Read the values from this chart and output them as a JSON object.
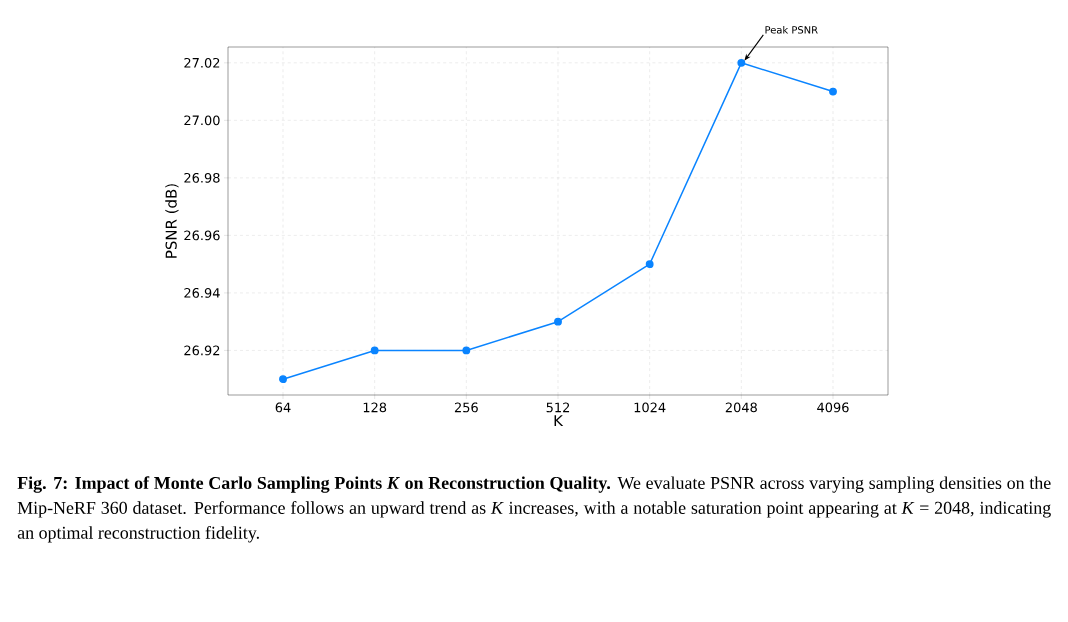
{
  "chart_data": {
    "type": "line",
    "title": "Fig. 7: Impact of Monte Carlo Sampling Points *K* on Reconstruction Quality.",
    "xlabel": "K",
    "ylabel": "PSNR (dB)",
    "categories": [
      "64",
      "128",
      "256",
      "512",
      "1024",
      "2048",
      "4096"
    ],
    "series": [
      {
        "color": "#0a84ff",
        "values": [
          26.91,
          26.92,
          26.92,
          26.93,
          26.95,
          27.02,
          27.01
        ]
      }
    ],
    "ylim": [
      26.9045,
      27.0255
    ],
    "yticks": [
      26.92,
      26.94,
      26.96,
      26.98,
      {
        "value": 27.0,
        "label": "27.00"
      },
      27.02
    ],
    "grid": true,
    "marker": "circle",
    "line_style": "solid",
    "annotations": [
      {
        "text": "Peak PSNR",
        "x": "2048",
        "y": 27.02
      },
      "We evaluate PSNR across varying sampling densities on the Mip-NeRF 360 dataset. Performance follows an upward trend as *K* increases, with a notable saturation point appearing at *K* = 2048, indicating an optimal reconstruction fidelity."
    ]
  }
}
